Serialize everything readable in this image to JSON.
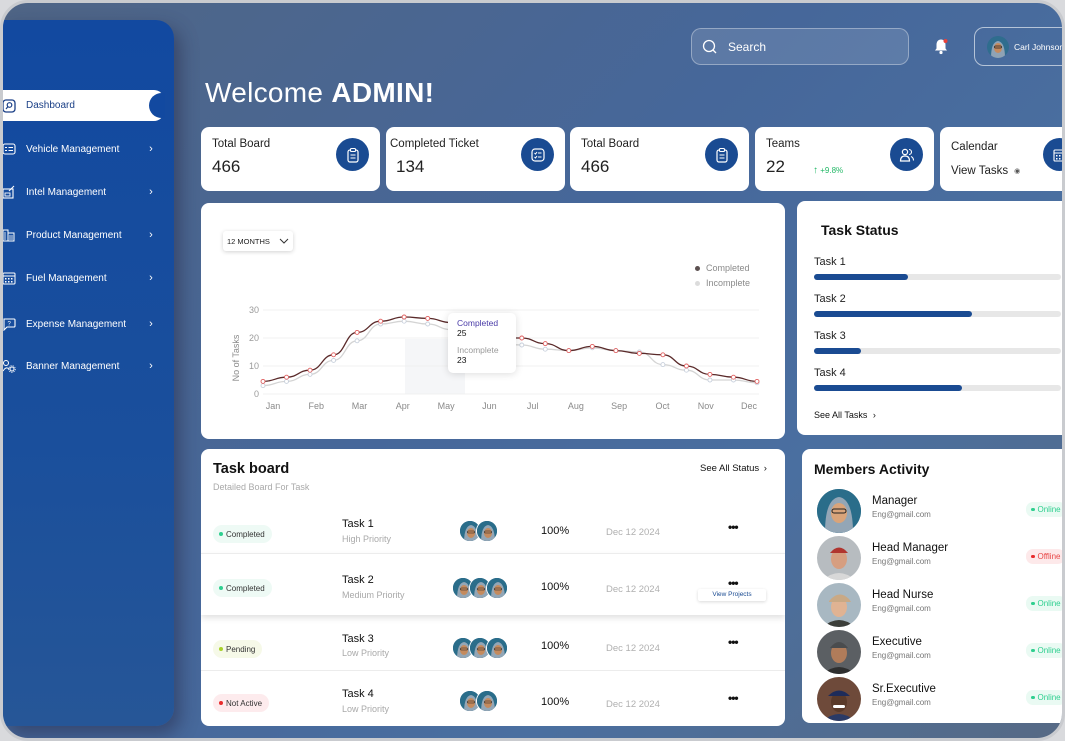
{
  "header": {
    "search_placeholder": "Search",
    "user_name": "Carl Johnson",
    "welcome_prefix": "Welcome ",
    "welcome_name": "ADMIN!"
  },
  "sidebar": {
    "items": [
      {
        "label": "Dashboard",
        "icon": "dashboard-icon",
        "active": true
      },
      {
        "label": "Vehicle Management",
        "icon": "vehicle-icon"
      },
      {
        "label": "Intel Management",
        "icon": "intel-icon"
      },
      {
        "label": "Product Management",
        "icon": "product-icon"
      },
      {
        "label": "Fuel Management",
        "icon": "fuel-icon"
      },
      {
        "label": "Expense Management",
        "icon": "expense-icon"
      },
      {
        "label": "Banner Management",
        "icon": "banner-icon"
      }
    ],
    "chevron": "›"
  },
  "stats": [
    {
      "title": "Total Board",
      "value": "466",
      "icon": "clipboard-icon"
    },
    {
      "title": "Completed Ticket",
      "value": "134",
      "icon": "checklist-icon"
    },
    {
      "title": "Total Board",
      "value": "466",
      "icon": "clipboard-icon"
    },
    {
      "title": "Teams",
      "value": "22",
      "trend": "+9.8%",
      "icon": "users-icon"
    },
    {
      "title": "Calendar",
      "link": "View Tasks",
      "icon": "calendar-icon"
    }
  ],
  "chart": {
    "range_label": "12 MONTHS",
    "legend": [
      "Completed",
      "Incomplete"
    ],
    "ylabel": "No of Tasks",
    "yticks": [
      "30",
      "20",
      "10",
      "0"
    ],
    "xticks": [
      "Jan",
      "Feb",
      "Mar",
      "Apr",
      "May",
      "Jun",
      "Jul",
      "Aug",
      "Sep",
      "Oct",
      "Nov",
      "Dec"
    ],
    "tooltip": {
      "completed_label": "Completed",
      "completed_value": "25",
      "incomplete_label": "Incomplete",
      "incomplete_value": "23"
    }
  },
  "chart_data": {
    "type": "line",
    "title": "",
    "xlabel": "",
    "ylabel": "No of Tasks",
    "ylim": [
      0,
      30
    ],
    "categories": [
      "Jan",
      "Feb",
      "Mar",
      "Apr",
      "May",
      "Jun",
      "Jul",
      "Aug",
      "Sep",
      "Oct",
      "Nov",
      "Dec"
    ],
    "series": [
      {
        "name": "Completed",
        "color": "#5a2a2a",
        "values": [
          4.5,
          6,
          8.5,
          14,
          22,
          26,
          27.5,
          27,
          25.5,
          23,
          20,
          20,
          18,
          15.5,
          17,
          15.5,
          14.5,
          14,
          10,
          7,
          6,
          4.5
        ]
      },
      {
        "name": "Incomplete",
        "color": "#d8d8d8",
        "values": [
          3,
          4.5,
          7,
          12,
          19,
          25,
          26,
          25,
          23,
          21,
          18,
          17.5,
          16,
          15.5,
          16.5,
          15.5,
          15,
          10.5,
          8.5,
          5,
          5,
          4
        ]
      }
    ],
    "legend_position": "top-right",
    "grid": true,
    "tooltip": {
      "month": "May",
      "Completed": 25,
      "Incomplete": 23
    }
  },
  "task_status": {
    "title": "Task Status",
    "tasks": [
      {
        "label": "Task 1",
        "percent": 38
      },
      {
        "label": "Task 2",
        "percent": 64
      },
      {
        "label": "Task 3",
        "percent": 19
      },
      {
        "label": "Task 4",
        "percent": 60
      }
    ],
    "see_all": "See All Tasks"
  },
  "task_board": {
    "title": "Task board",
    "subtitle": "Detailed Board For Task",
    "see_all": "See All Status",
    "rows": [
      {
        "status": "Completed",
        "status_color": "#2ecf8f",
        "pill_bg": "#eefaf5",
        "name": "Task 1",
        "priority": "High Priority",
        "avatars": 2,
        "progress": "100%",
        "date": "Dec 12 2024"
      },
      {
        "status": "Completed",
        "status_color": "#2ecf8f",
        "pill_bg": "#eefaf5",
        "name": "Task 2",
        "priority": "Medium Priority",
        "avatars": 3,
        "progress": "100%",
        "date": "Dec 12 2024",
        "menu_label": "View Projects"
      },
      {
        "status": "Pending",
        "status_color": "#a8d12a",
        "pill_bg": "#f6f9e8",
        "name": "Task 3",
        "priority": "Low Priority",
        "avatars": 3,
        "progress": "100%",
        "date": "Dec 12 2024"
      },
      {
        "status": "Not Active",
        "status_color": "#e82c2c",
        "pill_bg": "#fdebed",
        "name": "Task 4",
        "priority": "Low Priority",
        "avatars": 2,
        "progress": "100%",
        "date": "Dec 12 2024"
      }
    ],
    "more": "•••"
  },
  "members": {
    "title": "Members Activity",
    "list": [
      {
        "role": "Manager",
        "email": "Eng@gmail.com",
        "status": "Online"
      },
      {
        "role": "Head Manager",
        "email": "Eng@gmail.com",
        "status": "Offline"
      },
      {
        "role": "Head Nurse",
        "email": "Eng@gmail.com",
        "status": "Online"
      },
      {
        "role": "Executive",
        "email": "Eng@gmail.com",
        "status": "Online"
      },
      {
        "role": "Sr.Executive",
        "email": "Eng@gmail.com",
        "status": "Online"
      }
    ]
  },
  "colors": {
    "primary": "#1a4b92",
    "online": "#2ecf8f",
    "offline": "#e82c2c",
    "trend_up": "#22b866"
  }
}
